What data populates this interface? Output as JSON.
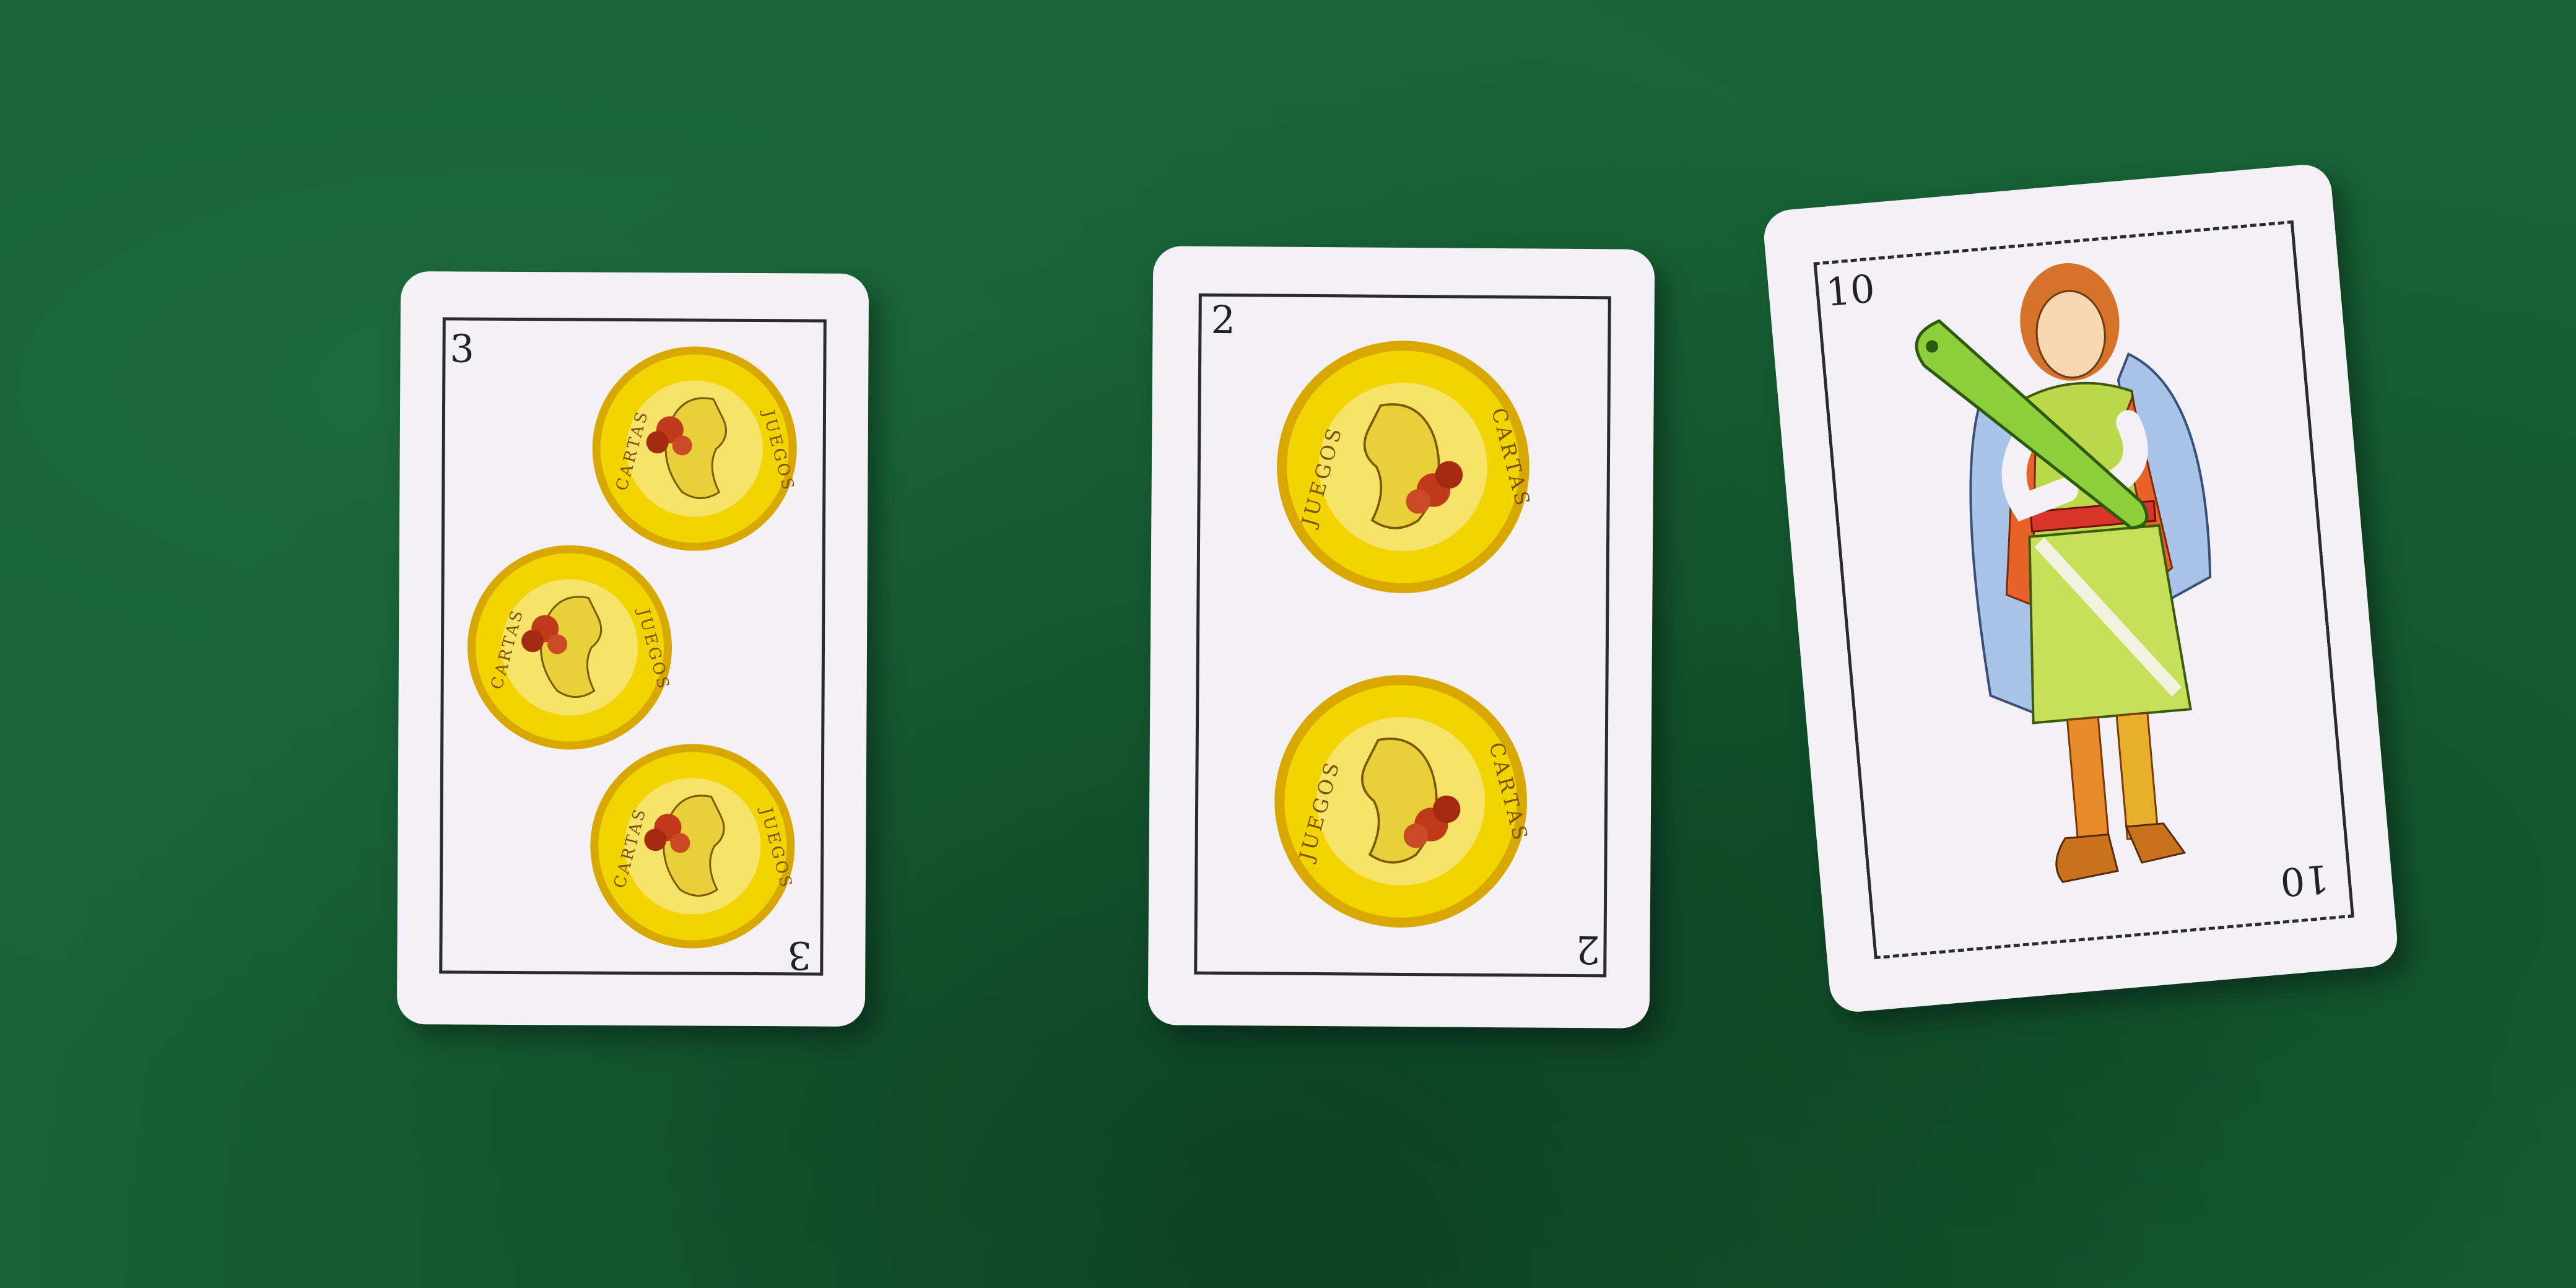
{
  "scene": {
    "table_color": "#176236",
    "description_icon": "green-felt-table"
  },
  "cards": [
    {
      "rank": "3",
      "suit": "oros",
      "coin_text_left": "CARTAS",
      "coin_text_right": "JUEGOS",
      "pips": 3
    },
    {
      "rank": "2",
      "suit": "oros",
      "coin_text_left": "JUEGOS",
      "coin_text_right": "CARTAS",
      "pips": 2
    },
    {
      "rank": "10",
      "suit": "bastos",
      "figure": "sota-de-bastos"
    }
  ],
  "colors": {
    "card_face": "#f3f1f5",
    "coin_gold": "#f2d400",
    "coin_rim": "#d8a800",
    "rose_red": "#c0391b"
  }
}
